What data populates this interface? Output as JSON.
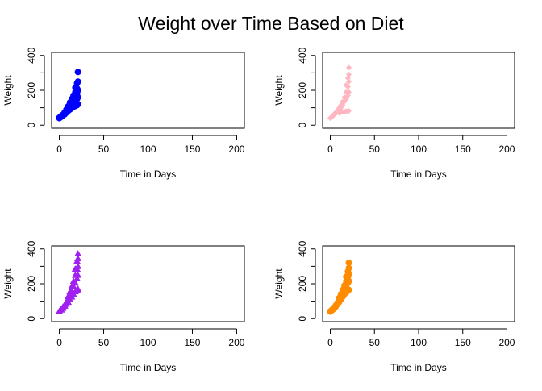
{
  "figure": {
    "title": "Weight over Time Based on Diet"
  },
  "chart_data": [
    {
      "type": "scatter",
      "xlabel": "Time in Days",
      "ylabel": "Weight",
      "xlim": [
        0,
        200
      ],
      "ylim": [
        0,
        400
      ],
      "xticks": [
        0,
        50,
        100,
        150,
        200
      ],
      "yticks": [
        0,
        200,
        400
      ],
      "color": "#0000ff",
      "marker": "circle",
      "points": [
        [
          0,
          40
        ],
        [
          0,
          42
        ],
        [
          0,
          43
        ],
        [
          2,
          47
        ],
        [
          2,
          50
        ],
        [
          2,
          52
        ],
        [
          4,
          55
        ],
        [
          4,
          58
        ],
        [
          4,
          60
        ],
        [
          6,
          62
        ],
        [
          6,
          66
        ],
        [
          6,
          70
        ],
        [
          6,
          73
        ],
        [
          8,
          72
        ],
        [
          8,
          80
        ],
        [
          8,
          85
        ],
        [
          8,
          90
        ],
        [
          10,
          82
        ],
        [
          10,
          92
        ],
        [
          10,
          100
        ],
        [
          10,
          108
        ],
        [
          12,
          90
        ],
        [
          12,
          105
        ],
        [
          12,
          118
        ],
        [
          12,
          130
        ],
        [
          14,
          98
        ],
        [
          14,
          118
        ],
        [
          14,
          135
        ],
        [
          14,
          150
        ],
        [
          16,
          105
        ],
        [
          16,
          130
        ],
        [
          16,
          150
        ],
        [
          16,
          170
        ],
        [
          18,
          110
        ],
        [
          18,
          140
        ],
        [
          18,
          165
        ],
        [
          18,
          190
        ],
        [
          18,
          215
        ],
        [
          20,
          115
        ],
        [
          20,
          150
        ],
        [
          20,
          180
        ],
        [
          20,
          210
        ],
        [
          20,
          240
        ],
        [
          21,
          120
        ],
        [
          21,
          160
        ],
        [
          21,
          200
        ],
        [
          21,
          250
        ],
        [
          21,
          305
        ]
      ]
    },
    {
      "type": "scatter",
      "xlabel": "Time in Days",
      "ylabel": "Weight",
      "xlim": [
        0,
        200
      ],
      "ylim": [
        0,
        400
      ],
      "xticks": [
        0,
        50,
        100,
        150,
        200
      ],
      "yticks": [
        0,
        200,
        400
      ],
      "color": "#ffb6c1",
      "marker": "diamond",
      "points": [
        [
          0,
          40
        ],
        [
          0,
          41
        ],
        [
          2,
          48
        ],
        [
          2,
          50
        ],
        [
          4,
          57
        ],
        [
          4,
          62
        ],
        [
          6,
          66
        ],
        [
          6,
          72
        ],
        [
          8,
          75
        ],
        [
          8,
          84
        ],
        [
          10,
          70
        ],
        [
          10,
          86
        ],
        [
          10,
          98
        ],
        [
          12,
          74
        ],
        [
          12,
          100
        ],
        [
          12,
          115
        ],
        [
          14,
          76
        ],
        [
          14,
          116
        ],
        [
          14,
          135
        ],
        [
          16,
          78
        ],
        [
          16,
          135
        ],
        [
          16,
          160
        ],
        [
          18,
          80
        ],
        [
          18,
          150
        ],
        [
          18,
          190
        ],
        [
          18,
          230
        ],
        [
          20,
          82
        ],
        [
          20,
          170
        ],
        [
          20,
          220
        ],
        [
          20,
          270
        ],
        [
          21,
          82
        ],
        [
          21,
          190
        ],
        [
          21,
          250
        ],
        [
          21,
          290
        ],
        [
          21,
          330
        ]
      ]
    },
    {
      "type": "scatter",
      "xlabel": "Time in Days",
      "ylabel": "Weight",
      "xlim": [
        0,
        200
      ],
      "ylim": [
        0,
        400
      ],
      "xticks": [
        0,
        50,
        100,
        150,
        200
      ],
      "yticks": [
        0,
        200,
        400
      ],
      "color": "#a020f0",
      "marker": "triangle",
      "points": [
        [
          0,
          41
        ],
        [
          0,
          43
        ],
        [
          2,
          50
        ],
        [
          2,
          53
        ],
        [
          4,
          60
        ],
        [
          4,
          66
        ],
        [
          6,
          72
        ],
        [
          6,
          80
        ],
        [
          8,
          85
        ],
        [
          8,
          96
        ],
        [
          10,
          95
        ],
        [
          10,
          115
        ],
        [
          10,
          128
        ],
        [
          12,
          110
        ],
        [
          12,
          135
        ],
        [
          12,
          155
        ],
        [
          14,
          125
        ],
        [
          14,
          160
        ],
        [
          14,
          185
        ],
        [
          16,
          140
        ],
        [
          16,
          185
        ],
        [
          16,
          215
        ],
        [
          18,
          155
        ],
        [
          18,
          205
        ],
        [
          18,
          250
        ],
        [
          18,
          285
        ],
        [
          20,
          165
        ],
        [
          20,
          230
        ],
        [
          20,
          285
        ],
        [
          20,
          330
        ],
        [
          21,
          170
        ],
        [
          21,
          250
        ],
        [
          21,
          300
        ],
        [
          21,
          345
        ],
        [
          21,
          373
        ]
      ]
    },
    {
      "type": "scatter",
      "xlabel": "Time in Days",
      "ylabel": "Weight",
      "xlim": [
        0,
        200
      ],
      "ylim": [
        0,
        400
      ],
      "xticks": [
        0,
        50,
        100,
        150,
        200
      ],
      "yticks": [
        0,
        200,
        400
      ],
      "color": "#ff8c00",
      "marker": "circle",
      "points": [
        [
          0,
          40
        ],
        [
          0,
          42
        ],
        [
          2,
          48
        ],
        [
          2,
          51
        ],
        [
          4,
          56
        ],
        [
          4,
          62
        ],
        [
          6,
          68
        ],
        [
          6,
          74
        ],
        [
          8,
          82
        ],
        [
          8,
          90
        ],
        [
          10,
          95
        ],
        [
          10,
          108
        ],
        [
          10,
          118
        ],
        [
          12,
          110
        ],
        [
          12,
          125
        ],
        [
          12,
          140
        ],
        [
          14,
          125
        ],
        [
          14,
          145
        ],
        [
          14,
          165
        ],
        [
          16,
          140
        ],
        [
          16,
          165
        ],
        [
          16,
          190
        ],
        [
          18,
          150
        ],
        [
          18,
          185
        ],
        [
          18,
          215
        ],
        [
          18,
          240
        ],
        [
          20,
          160
        ],
        [
          20,
          205
        ],
        [
          20,
          240
        ],
        [
          20,
          270
        ],
        [
          21,
          165
        ],
        [
          21,
          215
        ],
        [
          21,
          255
        ],
        [
          21,
          290
        ],
        [
          21,
          320
        ]
      ]
    }
  ]
}
